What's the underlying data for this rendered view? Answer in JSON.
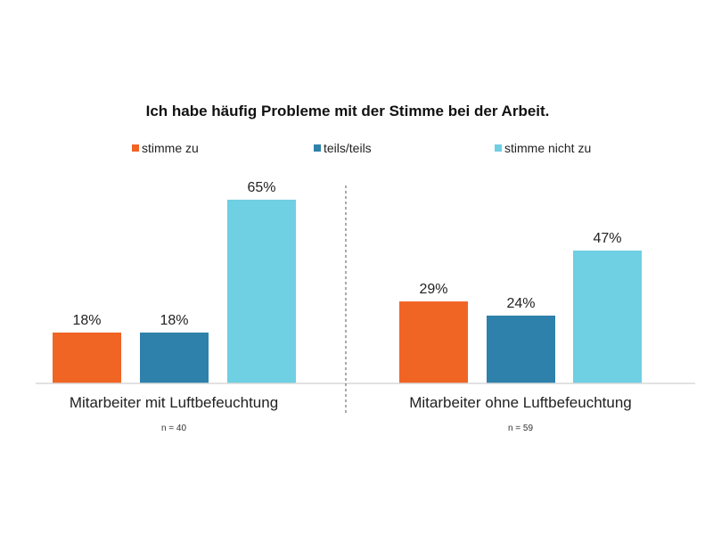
{
  "chart_data": {
    "type": "bar",
    "title": "Ich habe häufig Probleme mit der Stimme bei der Arbeit.",
    "categories": [
      "Mitarbeiter mit Luftbefeuchtung",
      "Mitarbeiter ohne Luftbefeuchtung"
    ],
    "sample_sizes": [
      "n = 40",
      "n = 59"
    ],
    "series": [
      {
        "name": "stimme zu",
        "color": "#f06424",
        "values": [
          18,
          29
        ]
      },
      {
        "name": "teils/teils",
        "color": "#2e81ab",
        "values": [
          18,
          24
        ]
      },
      {
        "name": "stimme nicht zu",
        "color": "#6fcfe3",
        "values": [
          65,
          47
        ]
      }
    ],
    "value_suffix": "%",
    "legend_position": "top",
    "grid": false,
    "ylim": [
      0,
      70
    ]
  }
}
